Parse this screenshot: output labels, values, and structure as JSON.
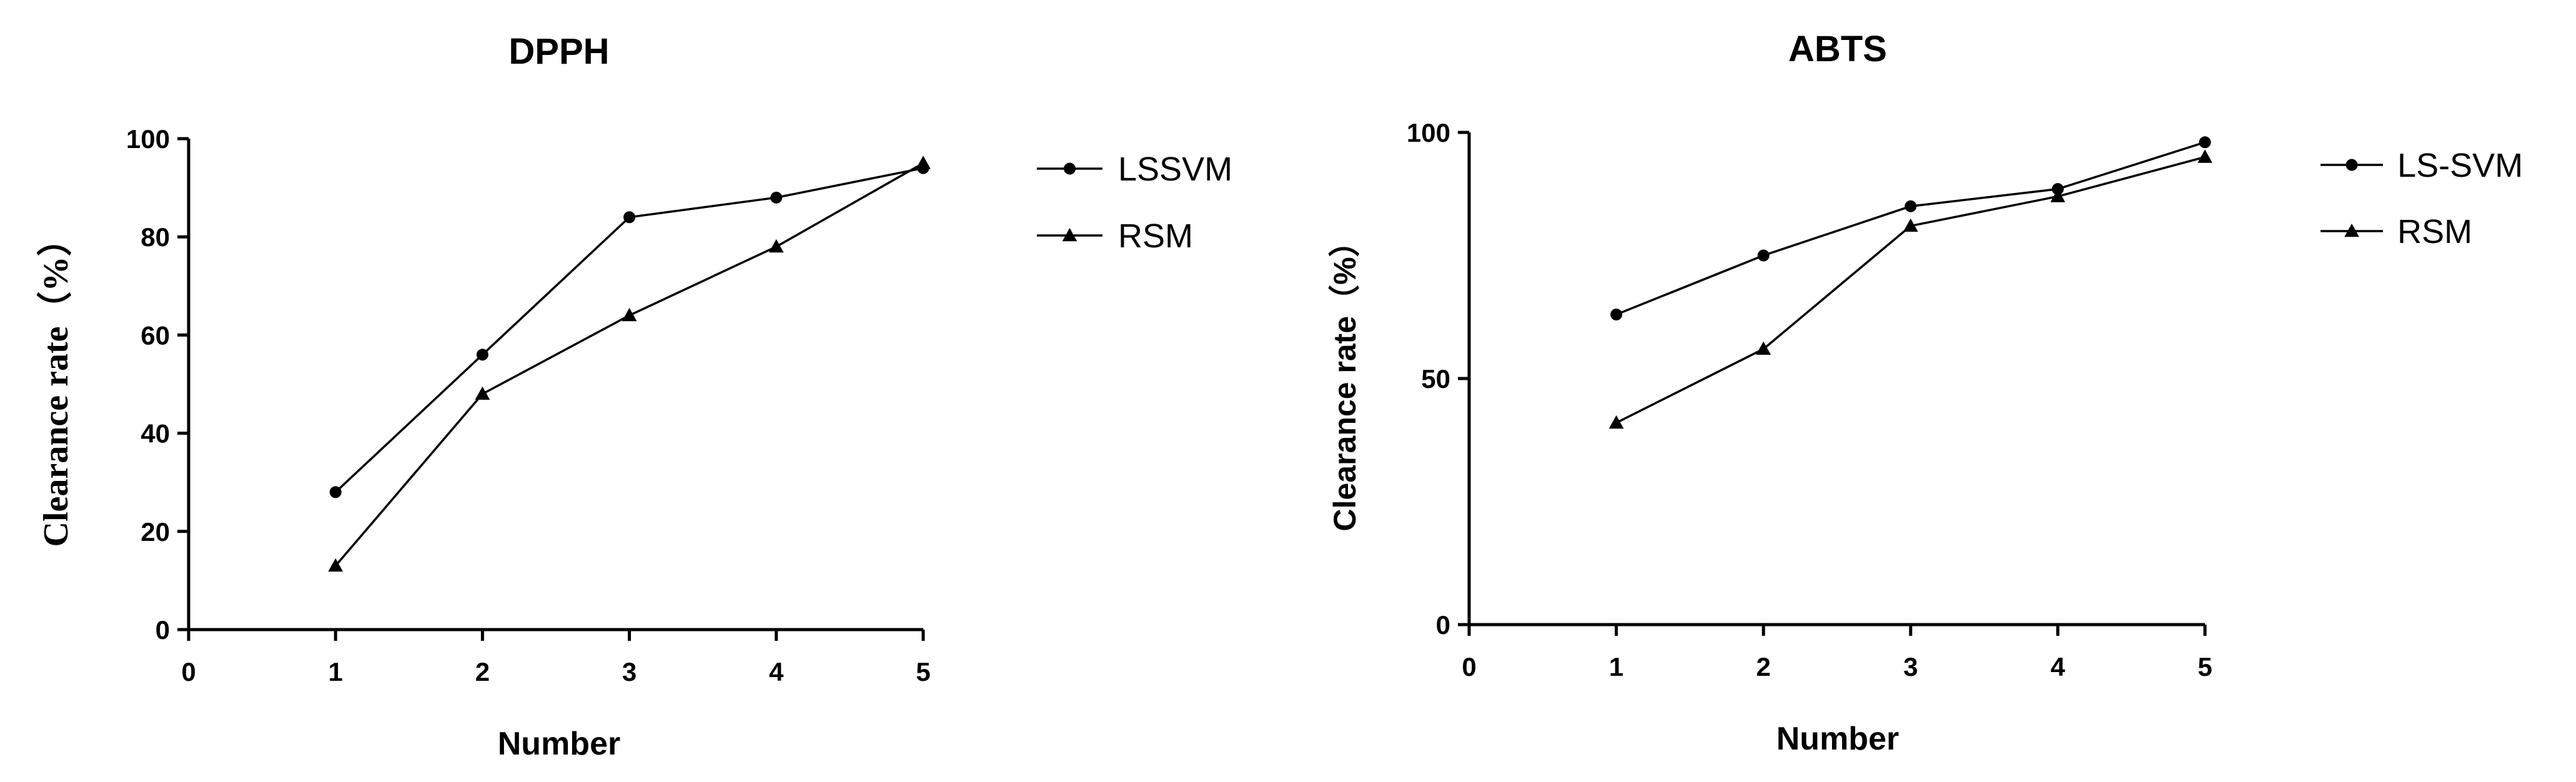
{
  "chart_data": [
    {
      "type": "line",
      "title": "DPPH",
      "xlabel": "Number",
      "ylabel": "Clearance rate（%）",
      "xlim": [
        0,
        5
      ],
      "ylim": [
        0,
        100
      ],
      "xticks": [
        0,
        1,
        2,
        3,
        4,
        5
      ],
      "yticks": [
        0,
        20,
        40,
        60,
        80,
        100
      ],
      "grid": false,
      "legend_position": "right",
      "x": [
        1,
        2,
        3,
        4,
        5
      ],
      "series": [
        {
          "name": "LSSVM",
          "marker": "circle",
          "values": [
            28,
            56,
            84,
            88,
            94
          ]
        },
        {
          "name": "RSM",
          "marker": "triangle",
          "values": [
            13,
            48,
            64,
            78,
            95
          ]
        }
      ]
    },
    {
      "type": "line",
      "title": "ABTS",
      "xlabel": "Number",
      "ylabel": "Clearance rate（%）",
      "xlim": [
        0,
        5
      ],
      "ylim": [
        0,
        100
      ],
      "xticks": [
        0,
        1,
        2,
        3,
        4,
        5
      ],
      "yticks": [
        0,
        50,
        100
      ],
      "grid": false,
      "legend_position": "right",
      "x": [
        1,
        2,
        3,
        4,
        5
      ],
      "series": [
        {
          "name": "LS-SVM",
          "marker": "circle",
          "values": [
            63,
            75,
            85,
            88.5,
            98
          ]
        },
        {
          "name": "RSM",
          "marker": "triangle",
          "values": [
            41,
            56,
            81,
            87,
            95
          ]
        }
      ]
    }
  ]
}
